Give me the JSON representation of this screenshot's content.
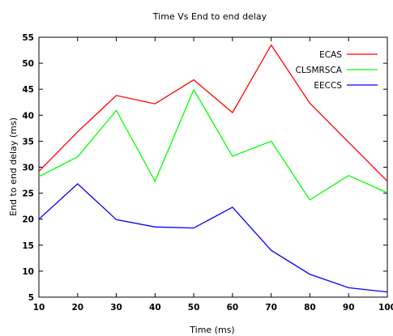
{
  "chart_data": {
    "type": "line",
    "title": "Time Vs End to end delay",
    "xlabel": "Time (ms)",
    "ylabel": "End to end delay  (ms)",
    "x": [
      10,
      20,
      30,
      40,
      50,
      60,
      70,
      80,
      90,
      100
    ],
    "xlim": [
      10,
      100
    ],
    "ylim": [
      5,
      55
    ],
    "xticks": [
      "10",
      "20",
      "30",
      "40",
      "50",
      "60",
      "70",
      "80",
      "90",
      "100"
    ],
    "yticks": [
      "5",
      "10",
      "15",
      "20",
      "25",
      "30",
      "35",
      "40",
      "45",
      "50",
      "55"
    ],
    "grid": false,
    "legend_position": "top-right",
    "series": [
      {
        "name": "ECAS",
        "color": "#ff0000",
        "values": [
          29.2,
          36.8,
          43.8,
          42.2,
          46.8,
          40.5,
          53.5,
          42.3,
          34.8,
          27.3
        ]
      },
      {
        "name": "CLSMRSCA",
        "color": "#00ff00",
        "values": [
          28.2,
          32.0,
          40.9,
          27.3,
          44.9,
          32.1,
          35.0,
          23.7,
          28.4,
          25.1
        ]
      },
      {
        "name": "EECCS",
        "color": "#0000ff",
        "values": [
          20.0,
          26.8,
          19.9,
          18.5,
          18.3,
          22.3,
          14.0,
          9.4,
          6.8,
          6.0
        ]
      }
    ]
  }
}
